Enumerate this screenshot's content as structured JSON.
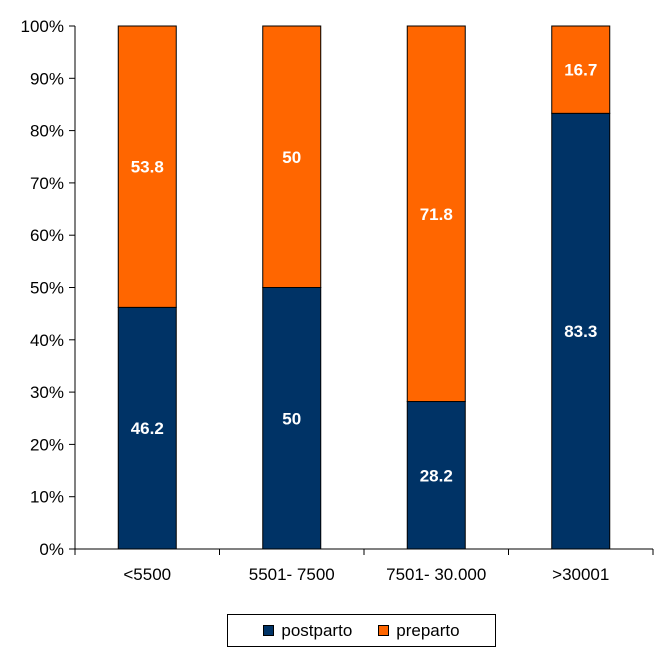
{
  "chart_data": {
    "type": "bar",
    "stacked": true,
    "percent_stacked": true,
    "categories": [
      "<5500",
      "5501- 7500",
      "7501- 30.000",
      ">30001"
    ],
    "series": [
      {
        "name": "postparto",
        "color": "#003366",
        "values": [
          46.2,
          50,
          28.2,
          83.3
        ]
      },
      {
        "name": "preparto",
        "color": "#FF6600",
        "values": [
          53.8,
          50,
          71.8,
          16.7
        ]
      }
    ],
    "y_ticks": [
      "0%",
      "10%",
      "20%",
      "30%",
      "40%",
      "50%",
      "60%",
      "70%",
      "80%",
      "90%",
      "100%"
    ],
    "ylim": [
      0,
      100
    ],
    "grid": false,
    "legend_position": "bottom"
  }
}
